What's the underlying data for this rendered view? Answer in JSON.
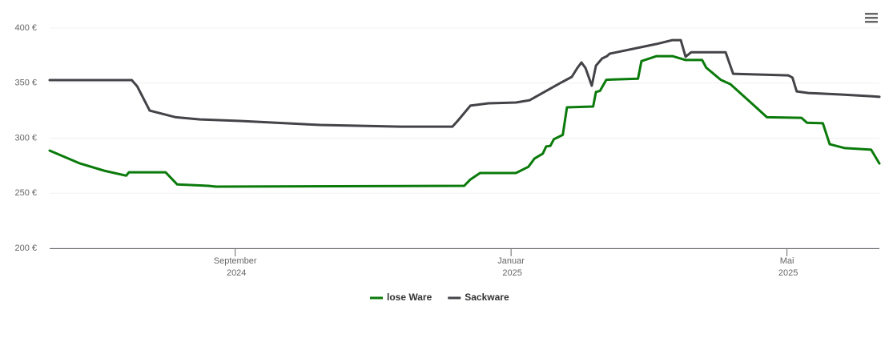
{
  "chart_data": {
    "type": "line",
    "ylim": [
      200,
      400
    ],
    "yticks": [
      {
        "value": 200,
        "label": "200 €"
      },
      {
        "value": 250,
        "label": "250 €"
      },
      {
        "value": 300,
        "label": "300 €"
      },
      {
        "value": 350,
        "label": "350 €"
      },
      {
        "value": 400,
        "label": "400 €"
      }
    ],
    "xlim": [
      5.31,
      17.34
    ],
    "xticks": [
      {
        "value": 8,
        "label": "September 2024"
      },
      {
        "value": 12,
        "label": "Januar 2025"
      },
      {
        "value": 16,
        "label": "Mai 2025"
      }
    ],
    "grid": true,
    "legend": "bottom",
    "series": [
      {
        "name": "lose Ware",
        "color": "#0a7a0a",
        "x": [
          5.31,
          5.75,
          6.1,
          6.42,
          6.46,
          6.99,
          7.16,
          7.61,
          7.72,
          11.32,
          11.41,
          11.55,
          12.07,
          12.25,
          12.34,
          12.46,
          12.51,
          12.57,
          12.62,
          12.75,
          12.81,
          13.19,
          13.23,
          13.29,
          13.38,
          13.84,
          13.89,
          14.11,
          14.34,
          14.53,
          14.77,
          14.83,
          15.04,
          15.18,
          15.5,
          15.71,
          16.21,
          16.29,
          16.52,
          16.62,
          16.84,
          17.22,
          17.34
        ],
        "values": [
          288.7,
          277,
          270.5,
          266,
          269,
          269,
          258,
          256.7,
          256,
          256.7,
          262.5,
          268.4,
          268.4,
          274,
          281.5,
          286,
          292.5,
          293,
          299,
          303,
          328,
          328.7,
          342,
          343,
          353,
          354,
          370,
          374.5,
          374.5,
          371,
          371,
          364,
          353,
          349,
          331,
          319,
          318.5,
          314,
          313.5,
          294.5,
          291,
          289.5,
          277
        ]
      },
      {
        "name": "Sackware",
        "color": "#434348",
        "x": [
          5.31,
          6.5,
          6.58,
          6.76,
          7.14,
          7.49,
          8.07,
          9.23,
          10.39,
          11.15,
          11.23,
          11.41,
          11.67,
          12.07,
          12.27,
          12.71,
          12.88,
          12.96,
          13.02,
          13.08,
          13.17,
          13.23,
          13.32,
          13.39,
          13.43,
          14.11,
          14.34,
          14.46,
          14.53,
          14.61,
          15.11,
          15.22,
          16.02,
          16.08,
          16.14,
          16.31,
          16.78,
          17.24,
          17.34
        ],
        "values": [
          352.7,
          352.7,
          347,
          325,
          319,
          317,
          315.6,
          312,
          310.5,
          310.5,
          316,
          329.5,
          331.6,
          332.4,
          334.5,
          350,
          355.6,
          363.6,
          368.7,
          363.6,
          347.6,
          365.8,
          372.4,
          374.5,
          376.7,
          385.5,
          389,
          389,
          374,
          378,
          378,
          358.5,
          357,
          355,
          342.5,
          341,
          339.6,
          338,
          337.5
        ]
      }
    ]
  }
}
